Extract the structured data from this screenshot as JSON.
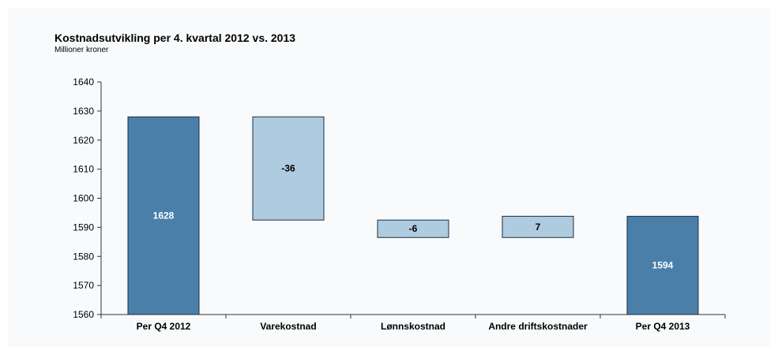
{
  "chart_data": {
    "type": "bar",
    "subtype": "waterfall",
    "title": "Kostnadsutvikling per 4. kvartal 2012 vs. 2013",
    "subtitle": "Millioner kroner",
    "xlabel": "",
    "ylabel": "",
    "ylim": [
      1560,
      1640
    ],
    "yticks": [
      1560,
      1570,
      1580,
      1590,
      1600,
      1610,
      1620,
      1630,
      1640
    ],
    "grid": false,
    "categories": [
      "Per Q4 2012",
      "Varekostnad",
      "Lønnskostnad",
      "Andre driftskostnader",
      "Per Q4 2013"
    ],
    "bars": [
      {
        "category": "Per Q4 2012",
        "kind": "total",
        "start": 1560,
        "end": 1628,
        "label": "1628"
      },
      {
        "category": "Varekostnad",
        "kind": "change",
        "start": 1628,
        "end": 1592.5,
        "label": "-36"
      },
      {
        "category": "Lønnskostnad",
        "kind": "change",
        "start": 1592.5,
        "end": 1586.5,
        "label": "-6"
      },
      {
        "category": "Andre driftskostnader",
        "kind": "change",
        "start": 1586.5,
        "end": 1593.8,
        "label": "7"
      },
      {
        "category": "Per Q4 2013",
        "kind": "total",
        "start": 1560,
        "end": 1593.8,
        "label": "1594"
      }
    ],
    "colors": {
      "total": "#4a7fa9",
      "change": "#aecbe0",
      "total_label": "#ffffff",
      "change_label": "#000000"
    }
  }
}
